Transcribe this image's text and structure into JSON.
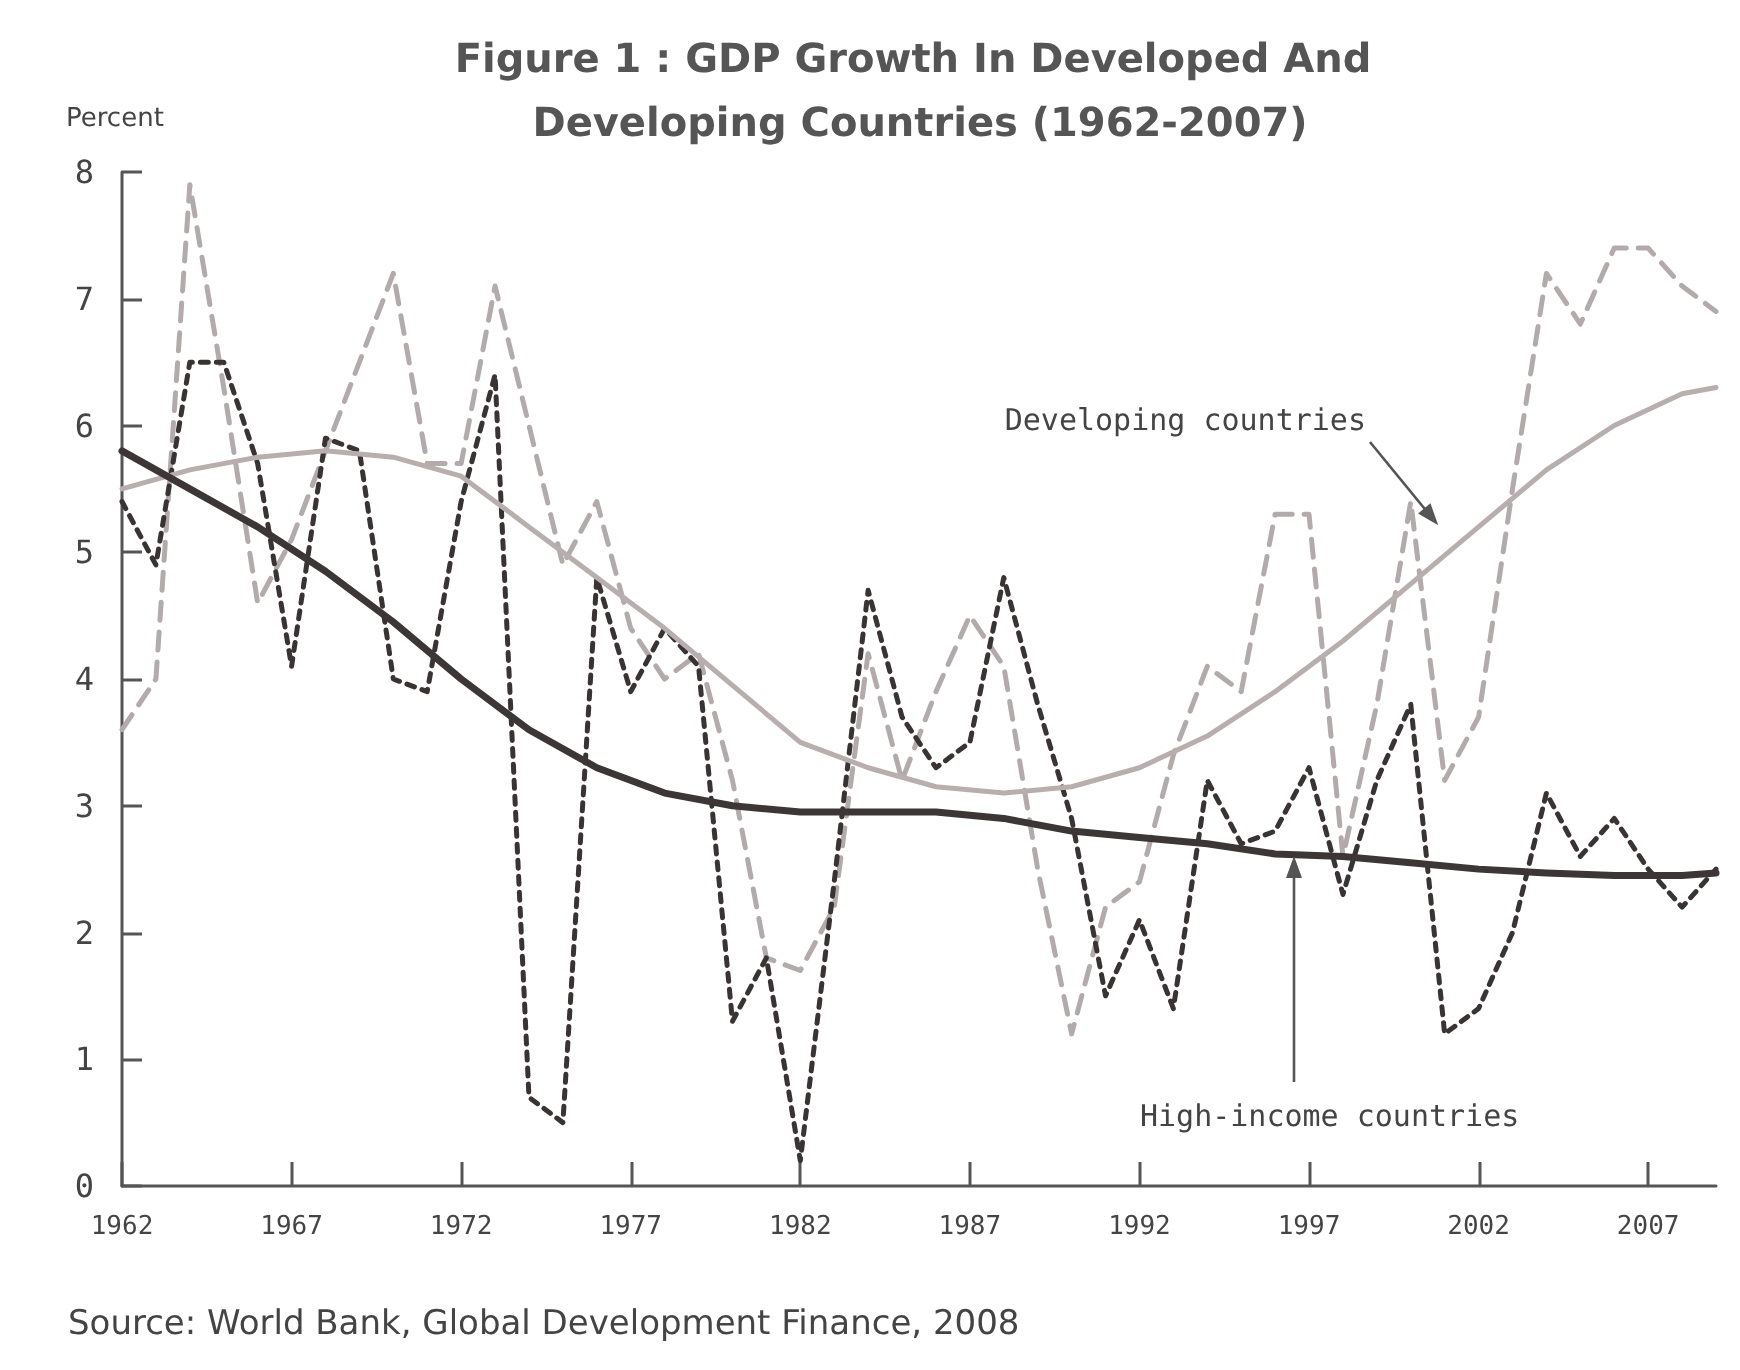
{
  "chart_data": {
    "type": "line",
    "title": "Figure 1 : GDP Growth In Developed And Developing Countries (1962-2007)",
    "ylabel": "Percent",
    "xlim": [
      1962,
      2009
    ],
    "xticks": [
      1962,
      1967,
      1972,
      1977,
      1982,
      1987,
      1992,
      1997,
      2002,
      2007
    ],
    "ylim": [
      0,
      8
    ],
    "yticks": [
      0,
      1,
      2,
      3,
      4,
      5,
      6,
      7,
      8
    ],
    "grid": false,
    "marker": "none",
    "series": [
      {
        "color": "#b3abab",
        "line_style": "dashed",
        "x": [
          1962,
          1963,
          1964,
          1965,
          1966,
          1967,
          1968,
          1969,
          1970,
          1971,
          1972,
          1973,
          1974,
          1975,
          1976,
          1977,
          1978,
          1979,
          1980,
          1981,
          1982,
          1983,
          1984,
          1985,
          1986,
          1987,
          1988,
          1989,
          1990,
          1991,
          1992,
          1993,
          1994,
          1995,
          1996,
          1997,
          1998,
          1999,
          2000,
          2001,
          2002,
          2003,
          2004,
          2005,
          2006,
          2007,
          2008,
          2009
        ],
        "values": [
          3.6,
          4.0,
          7.9,
          6.3,
          4.6,
          5.1,
          5.8,
          6.5,
          7.2,
          5.7,
          5.7,
          7.1,
          6.0,
          4.9,
          5.4,
          4.4,
          4.0,
          4.2,
          3.2,
          1.8,
          1.7,
          2.2,
          4.2,
          3.2,
          3.9,
          4.5,
          4.1,
          2.5,
          1.2,
          2.2,
          2.4,
          3.4,
          4.1,
          3.9,
          5.3,
          5.3,
          2.6,
          3.8,
          5.4,
          3.2,
          3.7,
          5.5,
          7.2,
          6.8,
          7.4,
          7.4,
          7.1,
          6.9
        ]
      },
      {
        "color": "#3a3333",
        "line_style": "dotted",
        "x": [
          1962,
          1963,
          1964,
          1965,
          1966,
          1967,
          1968,
          1969,
          1970,
          1971,
          1972,
          1973,
          1974,
          1975,
          1976,
          1977,
          1978,
          1979,
          1980,
          1981,
          1982,
          1983,
          1984,
          1985,
          1986,
          1987,
          1988,
          1989,
          1990,
          1991,
          1992,
          1993,
          1994,
          1995,
          1996,
          1997,
          1998,
          1999,
          2000,
          2001,
          2002,
          2003,
          2004,
          2005,
          2006,
          2007,
          2008,
          2009
        ],
        "values": [
          5.4,
          4.9,
          6.5,
          6.5,
          5.7,
          4.1,
          5.9,
          5.8,
          4.0,
          3.9,
          5.4,
          6.4,
          0.7,
          0.5,
          4.8,
          3.9,
          4.4,
          4.1,
          1.3,
          1.8,
          0.2,
          2.4,
          4.7,
          3.7,
          3.3,
          3.5,
          4.8,
          3.8,
          2.9,
          1.5,
          2.1,
          1.4,
          3.2,
          2.7,
          2.8,
          3.3,
          2.3,
          3.2,
          3.8,
          1.2,
          1.4,
          2.0,
          3.1,
          2.6,
          2.9,
          2.5,
          2.2,
          2.5
        ]
      },
      {
        "color": "#b8aeae",
        "line_style": "solid",
        "x": [
          1962,
          1964,
          1966,
          1968,
          1970,
          1972,
          1974,
          1976,
          1978,
          1980,
          1982,
          1984,
          1986,
          1988,
          1990,
          1992,
          1994,
          1996,
          1998,
          2000,
          2002,
          2004,
          2006,
          2008,
          2009
        ],
        "values": [
          5.5,
          5.65,
          5.75,
          5.8,
          5.75,
          5.6,
          5.2,
          4.8,
          4.4,
          3.95,
          3.5,
          3.3,
          3.15,
          3.1,
          3.15,
          3.3,
          3.55,
          3.9,
          4.3,
          4.75,
          5.2,
          5.65,
          6.0,
          6.25,
          6.3
        ]
      },
      {
        "color": "#3d3636",
        "line_style": "solid",
        "x": [
          1962,
          1964,
          1966,
          1968,
          1970,
          1972,
          1974,
          1976,
          1978,
          1980,
          1982,
          1984,
          1986,
          1988,
          1990,
          1992,
          1994,
          1996,
          1998,
          2000,
          2002,
          2004,
          2006,
          2008,
          2009
        ],
        "values": [
          5.8,
          5.5,
          5.2,
          4.85,
          4.45,
          4.0,
          3.6,
          3.3,
          3.1,
          3.0,
          2.95,
          2.95,
          2.95,
          2.9,
          2.8,
          2.75,
          2.7,
          2.62,
          2.6,
          2.55,
          2.5,
          2.47,
          2.45,
          2.45,
          2.47
        ]
      }
    ],
    "annotations": [
      "Developing countries",
      "High-income countries",
      "Source: World Bank, Global Development Finance, 2008"
    ]
  }
}
